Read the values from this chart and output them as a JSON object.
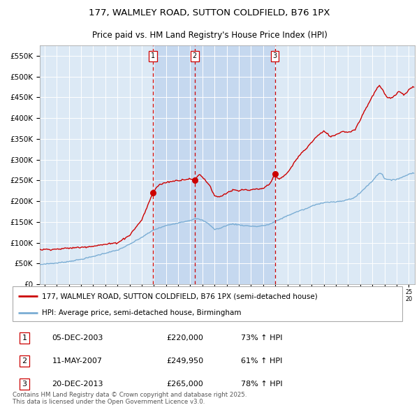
{
  "title_line1": "177, WALMLEY ROAD, SUTTON COLDFIELD, B76 1PX",
  "title_line2": "Price paid vs. HM Land Registry's House Price Index (HPI)",
  "ytick_values": [
    0,
    50000,
    100000,
    150000,
    200000,
    250000,
    300000,
    350000,
    400000,
    450000,
    500000,
    550000
  ],
  "xlim_years": [
    1994.6,
    2025.5
  ],
  "ylim": [
    0,
    575000
  ],
  "background_color": "#dce9f5",
  "shaded_color": "#c5d8ef",
  "grid_color": "#ffffff",
  "red_line_color": "#cc0000",
  "blue_line_color": "#7aadd4",
  "vline_color": "#cc0000",
  "transaction_markers": [
    {
      "date_num": 2003.92,
      "price": 220000,
      "label": "1"
    },
    {
      "date_num": 2007.36,
      "price": 249950,
      "label": "2"
    },
    {
      "date_num": 2013.97,
      "price": 265000,
      "label": "3"
    }
  ],
  "legend_entries": [
    "177, WALMLEY ROAD, SUTTON COLDFIELD, B76 1PX (semi-detached house)",
    "HPI: Average price, semi-detached house, Birmingham"
  ],
  "table_rows": [
    {
      "num": "1",
      "date": "05-DEC-2003",
      "price": "£220,000",
      "hpi": "73% ↑ HPI"
    },
    {
      "num": "2",
      "date": "11-MAY-2007",
      "price": "£249,950",
      "hpi": "61% ↑ HPI"
    },
    {
      "num": "3",
      "date": "20-DEC-2013",
      "price": "£265,000",
      "hpi": "78% ↑ HPI"
    }
  ],
  "footnote": "Contains HM Land Registry data © Crown copyright and database right 2025.\nThis data is licensed under the Open Government Licence v3.0.",
  "shaded_region_start": 2003.92,
  "shaded_region_end": 2013.97,
  "hpi_anchors": [
    [
      1994.5,
      47000
    ],
    [
      1995.0,
      49000
    ],
    [
      1996.0,
      51000
    ],
    [
      1997.0,
      55000
    ],
    [
      1998.0,
      60000
    ],
    [
      1999.0,
      67000
    ],
    [
      2000.0,
      75000
    ],
    [
      2001.0,
      82000
    ],
    [
      2002.0,
      96000
    ],
    [
      2003.0,
      113000
    ],
    [
      2004.0,
      131000
    ],
    [
      2005.0,
      141000
    ],
    [
      2006.0,
      148000
    ],
    [
      2007.0,
      154000
    ],
    [
      2007.5,
      158000
    ],
    [
      2008.0,
      154000
    ],
    [
      2008.5,
      146000
    ],
    [
      2009.0,
      132000
    ],
    [
      2009.5,
      135000
    ],
    [
      2010.0,
      142000
    ],
    [
      2010.5,
      145000
    ],
    [
      2011.0,
      143000
    ],
    [
      2011.5,
      141000
    ],
    [
      2012.0,
      140000
    ],
    [
      2012.5,
      139000
    ],
    [
      2013.0,
      141000
    ],
    [
      2013.5,
      144000
    ],
    [
      2014.0,
      151000
    ],
    [
      2014.5,
      158000
    ],
    [
      2015.0,
      165000
    ],
    [
      2015.5,
      171000
    ],
    [
      2016.0,
      177000
    ],
    [
      2016.5,
      181000
    ],
    [
      2017.0,
      188000
    ],
    [
      2017.5,
      193000
    ],
    [
      2018.0,
      197000
    ],
    [
      2018.5,
      198000
    ],
    [
      2019.0,
      198000
    ],
    [
      2019.5,
      200000
    ],
    [
      2020.0,
      204000
    ],
    [
      2020.5,
      208000
    ],
    [
      2021.0,
      220000
    ],
    [
      2021.5,
      235000
    ],
    [
      2022.0,
      248000
    ],
    [
      2022.3,
      260000
    ],
    [
      2022.6,
      268000
    ],
    [
      2022.8,
      265000
    ],
    [
      2023.0,
      255000
    ],
    [
      2023.3,
      252000
    ],
    [
      2023.6,
      250000
    ],
    [
      2023.9,
      252000
    ],
    [
      2024.2,
      255000
    ],
    [
      2024.5,
      258000
    ],
    [
      2024.8,
      262000
    ],
    [
      2025.0,
      265000
    ],
    [
      2025.3,
      268000
    ]
  ],
  "prop_anchors": [
    [
      1994.5,
      83000
    ],
    [
      1995.0,
      84000
    ],
    [
      1996.0,
      84500
    ],
    [
      1997.0,
      87000
    ],
    [
      1998.0,
      89000
    ],
    [
      1999.0,
      92000
    ],
    [
      2000.0,
      96000
    ],
    [
      2001.0,
      100000
    ],
    [
      2002.0,
      118000
    ],
    [
      2003.0,
      155000
    ],
    [
      2003.5,
      190000
    ],
    [
      2003.92,
      220000
    ],
    [
      2004.2,
      233000
    ],
    [
      2004.5,
      240000
    ],
    [
      2005.0,
      245000
    ],
    [
      2005.5,
      248000
    ],
    [
      2006.0,
      250000
    ],
    [
      2006.5,
      252000
    ],
    [
      2007.0,
      254000
    ],
    [
      2007.36,
      249950
    ],
    [
      2007.6,
      260000
    ],
    [
      2007.8,
      265000
    ],
    [
      2008.0,
      258000
    ],
    [
      2008.3,
      248000
    ],
    [
      2008.6,
      238000
    ],
    [
      2009.0,
      213000
    ],
    [
      2009.3,
      210000
    ],
    [
      2009.6,
      213000
    ],
    [
      2010.0,
      220000
    ],
    [
      2010.3,
      224000
    ],
    [
      2010.6,
      227000
    ],
    [
      2011.0,
      224000
    ],
    [
      2011.3,
      228000
    ],
    [
      2011.6,
      227000
    ],
    [
      2012.0,
      226000
    ],
    [
      2012.3,
      229000
    ],
    [
      2012.6,
      228000
    ],
    [
      2013.0,
      231000
    ],
    [
      2013.5,
      240000
    ],
    [
      2013.97,
      265000
    ],
    [
      2014.1,
      258000
    ],
    [
      2014.3,
      252000
    ],
    [
      2014.6,
      258000
    ],
    [
      2015.0,
      268000
    ],
    [
      2015.3,
      280000
    ],
    [
      2015.6,
      295000
    ],
    [
      2016.0,
      310000
    ],
    [
      2016.3,
      320000
    ],
    [
      2016.6,
      328000
    ],
    [
      2017.0,
      342000
    ],
    [
      2017.3,
      352000
    ],
    [
      2017.6,
      360000
    ],
    [
      2018.0,
      368000
    ],
    [
      2018.3,
      362000
    ],
    [
      2018.6,
      355000
    ],
    [
      2019.0,
      360000
    ],
    [
      2019.3,
      365000
    ],
    [
      2019.6,
      368000
    ],
    [
      2020.0,
      366000
    ],
    [
      2020.3,
      368000
    ],
    [
      2020.6,
      374000
    ],
    [
      2021.0,
      395000
    ],
    [
      2021.3,
      415000
    ],
    [
      2021.6,
      430000
    ],
    [
      2022.0,
      452000
    ],
    [
      2022.2,
      462000
    ],
    [
      2022.4,
      472000
    ],
    [
      2022.6,
      478000
    ],
    [
      2022.8,
      470000
    ],
    [
      2023.0,
      458000
    ],
    [
      2023.2,
      451000
    ],
    [
      2023.4,
      448000
    ],
    [
      2023.6,
      450000
    ],
    [
      2023.8,
      453000
    ],
    [
      2024.0,
      458000
    ],
    [
      2024.2,
      465000
    ],
    [
      2024.4,
      462000
    ],
    [
      2024.6,
      455000
    ],
    [
      2024.8,
      460000
    ],
    [
      2025.0,
      468000
    ],
    [
      2025.3,
      475000
    ]
  ]
}
